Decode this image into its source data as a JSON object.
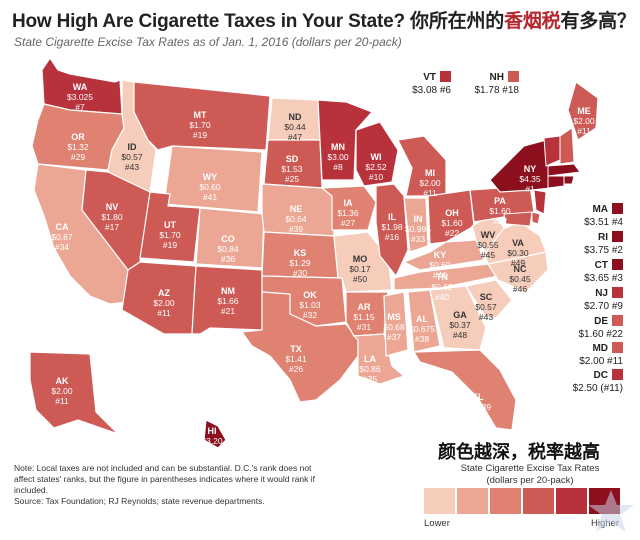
{
  "header": {
    "title_en": "How High Are Cigarette Taxes in Your State?",
    "title_zh_plain": "你所在州的",
    "title_zh_highlight": "香烟税",
    "title_zh_end": "有多高？",
    "subtitle": "State Cigarette Excise Tax Rates as of Jan. 1, 2016 (dollars per 20-pack)"
  },
  "colors": {
    "scale": [
      "#f6cdbb",
      "#eba794",
      "#df8272",
      "#cd5a55",
      "#b8323c",
      "#8b0f1c"
    ],
    "title_highlight": "#b5262d"
  },
  "states": {
    "WA": {
      "label": "WA",
      "value": "$3.025",
      "rank": "#7"
    },
    "OR": {
      "label": "OR",
      "value": "$1.32",
      "rank": "#29"
    },
    "CA": {
      "label": "CA",
      "value": "$0.87",
      "rank": "#34"
    },
    "ID": {
      "label": "ID",
      "value": "$0.57",
      "rank": "#43"
    },
    "NV": {
      "label": "NV",
      "value": "$1.80",
      "rank": "#17"
    },
    "MT": {
      "label": "MT",
      "value": "$1.70",
      "rank": "#19"
    },
    "WY": {
      "label": "WY",
      "value": "$0.60",
      "rank": "#41"
    },
    "UT": {
      "label": "UT",
      "value": "$1.70",
      "rank": "#19"
    },
    "AZ": {
      "label": "AZ",
      "value": "$2.00",
      "rank": "#11"
    },
    "CO": {
      "label": "CO",
      "value": "$0.84",
      "rank": "#36"
    },
    "NM": {
      "label": "NM",
      "value": "$1.66",
      "rank": "#21"
    },
    "ND": {
      "label": "ND",
      "value": "$0.44",
      "rank": "#47"
    },
    "SD": {
      "label": "SD",
      "value": "$1.53",
      "rank": "#25"
    },
    "NE": {
      "label": "NE",
      "value": "$0.64",
      "rank": "#39"
    },
    "KS": {
      "label": "KS",
      "value": "$1.29",
      "rank": "#30"
    },
    "OK": {
      "label": "OK",
      "value": "$1.03",
      "rank": "#32"
    },
    "TX": {
      "label": "TX",
      "value": "$1.41",
      "rank": "#26"
    },
    "MN": {
      "label": "MN",
      "value": "$3.00",
      "rank": "#8"
    },
    "IA": {
      "label": "IA",
      "value": "$1.36",
      "rank": "#27"
    },
    "MO": {
      "label": "MO",
      "value": "$0.17",
      "rank": "#50"
    },
    "AR": {
      "label": "AR",
      "value": "$1.15",
      "rank": "#31"
    },
    "LA": {
      "label": "LA",
      "value": "$0.86",
      "rank": "#35"
    },
    "WI": {
      "label": "WI",
      "value": "$2.52",
      "rank": "#10"
    },
    "IL": {
      "label": "IL",
      "value": "$1.98",
      "rank": "#16"
    },
    "MI": {
      "label": "MI",
      "value": "$2.00",
      "rank": "#11"
    },
    "IN": {
      "label": "IN",
      "value": "$0.995",
      "rank": "#33"
    },
    "OH": {
      "label": "OH",
      "value": "$1.60",
      "rank": "#22"
    },
    "KY": {
      "label": "KY",
      "value": "$0.60",
      "rank": "#41"
    },
    "TN": {
      "label": "TN",
      "value": "$0.62",
      "rank": "#40"
    },
    "MS": {
      "label": "MS",
      "value": "$0.68",
      "rank": "#37"
    },
    "AL": {
      "label": "AL",
      "value": "$0.675",
      "rank": "#38"
    },
    "GA": {
      "label": "GA",
      "value": "$0.37",
      "rank": "#48"
    },
    "FL": {
      "label": "FL",
      "value": "$1.339",
      "rank": "#28"
    },
    "SC": {
      "label": "SC",
      "value": "$0.57",
      "rank": "#43"
    },
    "NC": {
      "label": "NC",
      "value": "$0.45",
      "rank": "#46"
    },
    "VA": {
      "label": "VA",
      "value": "$0.30",
      "rank": "#49"
    },
    "WV": {
      "label": "WV",
      "value": "$0.55",
      "rank": "#45"
    },
    "PA": {
      "label": "PA",
      "value": "$1.60",
      "rank": "#22"
    },
    "NY": {
      "label": "NY",
      "value": "$4.35",
      "rank": "#1"
    },
    "ME": {
      "label": "ME",
      "value": "$2.00",
      "rank": "#11"
    },
    "AK": {
      "label": "AK",
      "value": "$2.00",
      "rank": "#11"
    },
    "HI": {
      "label": "HI",
      "value": "$3.20",
      "rank": "#5"
    }
  },
  "small_states": {
    "VT": {
      "label": "VT",
      "value_rank": "$3.08 #6"
    },
    "NH": {
      "label": "NH",
      "value_rank": "$1.78 #18"
    },
    "MA": {
      "label": "MA",
      "value_rank": "$3.51 #4"
    },
    "RI": {
      "label": "RI",
      "value_rank": "$3.75 #2"
    },
    "CT": {
      "label": "CT",
      "value_rank": "$3.65 #3"
    },
    "NJ": {
      "label": "NJ",
      "value_rank": "$2.70 #9"
    },
    "DE": {
      "label": "DE",
      "value_rank": "$1.60 #22"
    },
    "MD": {
      "label": "MD",
      "value_rank": "$2.00 #11"
    },
    "DC": {
      "label": "DC",
      "value_rank": "$2.50 (#11)"
    }
  },
  "footer": {
    "note": "Note: Local taxes are not included and can be substantial. D.C.'s rank does not affect states' ranks, but the figure in parentheses indicates where it would rank if included.",
    "source": "Source: Tax Foundation; RJ Reynolds; state revenue departments."
  },
  "legend": {
    "title_zh": "颜色越深，税率越高",
    "subtitle_line1": "State Cigarette Excise Tax Rates",
    "subtitle_line2": "(dollars per 20-pack)",
    "low_label": "Lower",
    "high_label": "Higher"
  }
}
